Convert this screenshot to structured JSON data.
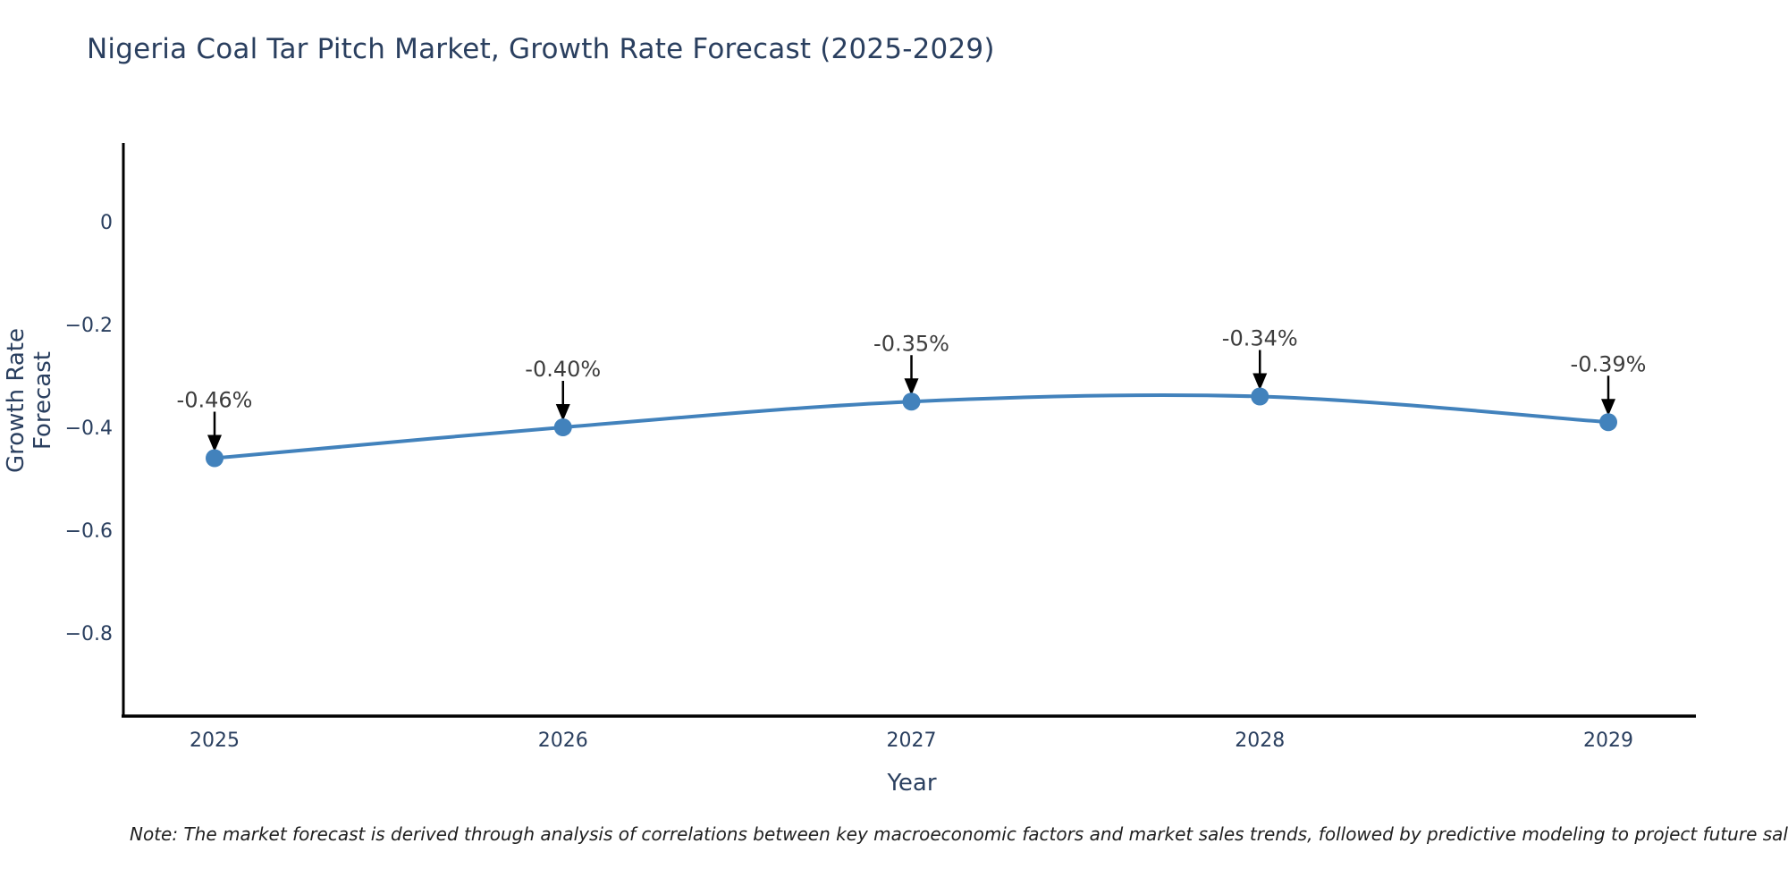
{
  "chart_data": {
    "type": "line",
    "title": "Nigeria Coal Tar Pitch Market, Growth Rate Forecast (2025-2029)",
    "xlabel": "Year",
    "ylabel": "Growth Rate Forecast",
    "categories": [
      "2025",
      "2026",
      "2027",
      "2028",
      "2029"
    ],
    "series": [
      {
        "name": "Growth Rate Forecast",
        "values": [
          -0.46,
          -0.4,
          -0.35,
          -0.34,
          -0.39
        ]
      }
    ],
    "point_labels": [
      "-0.46%",
      "-0.40%",
      "-0.35%",
      "-0.34%",
      "-0.39%"
    ],
    "y_ticks": [
      "0",
      "−0.2",
      "−0.4",
      "−0.6",
      "−0.8"
    ],
    "y_tick_values": [
      0,
      -0.2,
      -0.4,
      -0.6,
      -0.8
    ],
    "ylim": [
      -0.96,
      0.15
    ],
    "grid": false,
    "legend": "none",
    "line_color": "#4282bc",
    "marker_color": "#4282bc",
    "axis_line_color": "#000000",
    "annotation_arrow_color": "#000000",
    "annotation_text_color": "#3d3d3d",
    "text_color": "#2a3f5f",
    "background_color": "#ffffff"
  },
  "note": {
    "text": "Note: The market forecast is derived through analysis of correlations between key macroeconomic factors and market sales trends, followed by predictive modeling to project future sales"
  }
}
